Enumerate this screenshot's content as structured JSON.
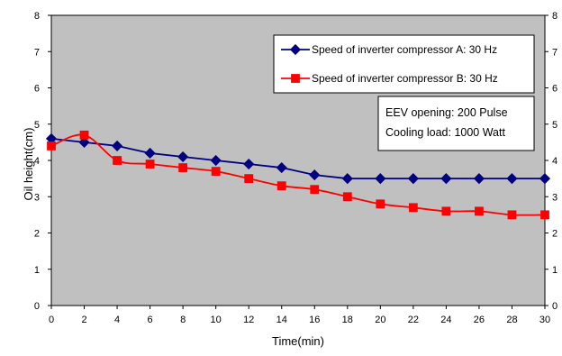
{
  "chart_data": {
    "type": "line",
    "xlabel": "Time(min)",
    "ylabel": "Oil height(cm)",
    "xlim": [
      0,
      30
    ],
    "ylim": [
      0,
      8
    ],
    "x_ticks": [
      0,
      2,
      4,
      6,
      8,
      10,
      12,
      14,
      16,
      18,
      20,
      22,
      24,
      26,
      28,
      30
    ],
    "y_ticks": [
      0,
      1,
      2,
      3,
      4,
      5,
      6,
      7,
      8
    ],
    "secondary_y_ticks": [
      0,
      1,
      2,
      3,
      4,
      5,
      6,
      7,
      8
    ],
    "grid": false,
    "plot_background": "#c0c0c0",
    "legend_position": "top-right",
    "x": [
      0,
      2,
      4,
      6,
      8,
      10,
      12,
      14,
      16,
      18,
      20,
      22,
      24,
      26,
      28,
      30
    ],
    "series": [
      {
        "name": "Speed of inverter compressor A: 30 Hz",
        "color": "#000080",
        "marker": "diamond",
        "smooth": false,
        "values": [
          4.6,
          4.5,
          4.4,
          4.2,
          4.1,
          4.0,
          3.9,
          3.8,
          3.6,
          3.5,
          3.5,
          3.5,
          3.5,
          3.5,
          3.5,
          3.5
        ]
      },
      {
        "name": "Speed of inverter compressor B: 30 Hz",
        "color": "#ff0000",
        "marker": "square",
        "smooth": true,
        "values": [
          4.4,
          4.7,
          4.0,
          3.9,
          3.8,
          3.7,
          3.5,
          3.3,
          3.2,
          3.0,
          2.8,
          2.7,
          2.6,
          2.6,
          2.5,
          2.5
        ]
      }
    ],
    "annotations": [
      "EEV opening: 200 Pulse",
      "Cooling load: 1000 Watt"
    ]
  }
}
